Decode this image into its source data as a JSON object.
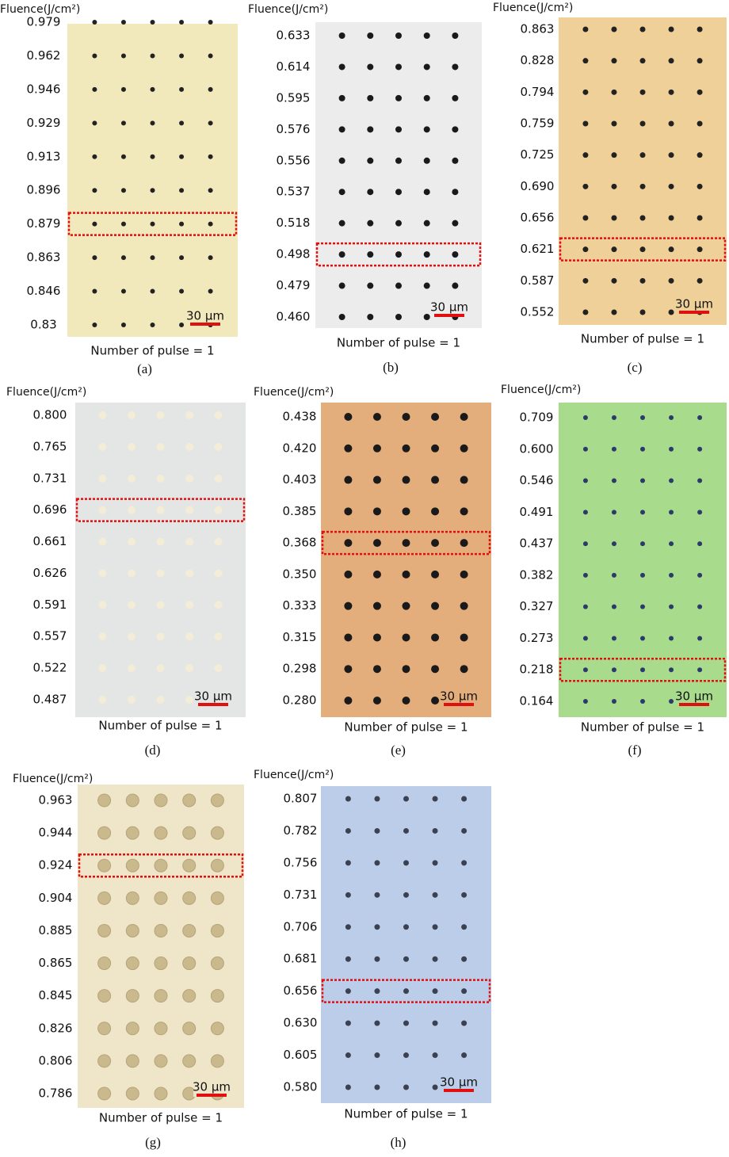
{
  "panels": [
    {
      "caption": "(a)",
      "axis_label": "Fluence(J/cm²)",
      "rows": [
        "0.979",
        "0.962",
        "0.946",
        "0.929",
        "0.913",
        "0.896",
        "0.879",
        "0.863",
        "0.846",
        "0.83"
      ],
      "scale": "30 µm",
      "pulse": "Number of pulse = 1"
    },
    {
      "caption": "(b)",
      "axis_label": "Fluence(J/cm²)",
      "rows": [
        "0.633",
        "0.614",
        "0.595",
        "0.576",
        "0.556",
        "0.537",
        "0.518",
        "0.498",
        "0.479",
        "0.460"
      ],
      "scale": "30 µm",
      "pulse": "Number of pulse = 1"
    },
    {
      "caption": "(c)",
      "axis_label": "Fluence(J/cm²)",
      "rows": [
        "0.863",
        "0.828",
        "0.794",
        "0.759",
        "0.725",
        "0.690",
        "0.656",
        "0.621",
        "0.587",
        "0.552"
      ],
      "scale": "30 µm",
      "pulse": "Number of pulse = 1"
    },
    {
      "caption": "(d)",
      "axis_label": "Fluence(J/cm²)",
      "rows": [
        "0.800",
        "0.765",
        "0.731",
        "0.696",
        "0.661",
        "0.626",
        "0.591",
        "0.557",
        "0.522",
        "0.487"
      ],
      "scale": "30 µm",
      "pulse": "Number of pulse = 1"
    },
    {
      "caption": "(e)",
      "axis_label": "Fluence(J/cm²)",
      "rows": [
        "0.438",
        "0.420",
        "0.403",
        "0.385",
        "0.368",
        "0.350",
        "0.333",
        "0.315",
        "0.298",
        "0.280"
      ],
      "scale": "30 µm",
      "pulse": "Number of pulse = 1"
    },
    {
      "caption": "(f)",
      "axis_label": "Fluence(J/cm²)",
      "rows": [
        "0.709",
        "0.600",
        "0.546",
        "0.491",
        "0.437",
        "0.382",
        "0.327",
        "0.273",
        "0.218",
        "0.164"
      ],
      "scale": "30 µm",
      "pulse": "Number of pulse = 1"
    },
    {
      "caption": "(g)",
      "axis_label": "Fluence(J/cm²)",
      "rows": [
        "0.963",
        "0.944",
        "0.924",
        "0.904",
        "0.885",
        "0.865",
        "0.845",
        "0.826",
        "0.806",
        "0.786"
      ],
      "scale": "30 µm",
      "pulse": "Number of pulse = 1"
    },
    {
      "caption": "(h)",
      "axis_label": "Fluence(J/cm²)",
      "rows": [
        "0.807",
        "0.782",
        "0.756",
        "0.731",
        "0.706",
        "0.681",
        "0.656",
        "0.630",
        "0.605",
        "0.580"
      ],
      "scale": "30 µm",
      "pulse": "Number of pulse = 1"
    }
  ]
}
